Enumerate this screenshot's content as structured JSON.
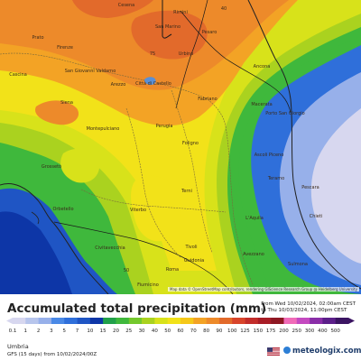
{
  "title": "Accumulated total precipitation (mm)",
  "dates": {
    "from": "From Wed 10/02/2024, 02:00am CEST",
    "to": "to Thu 10/03/2024, 11:00pm CEST"
  },
  "region": "Umbria",
  "model": "GFS (15 days) from 10/02/2024/00Z",
  "brand": "meteologix.com",
  "attribution": "Map data © OpenStreetMap contributors, rendering GIScience Research Group @ Heidelberg University",
  "legend": {
    "values": [
      "0.1",
      "1",
      "2",
      "3",
      "5",
      "7",
      "10",
      "15",
      "20",
      "25",
      "30",
      "40",
      "50",
      "60",
      "70",
      "80",
      "90",
      "100",
      "125",
      "150",
      "175",
      "200",
      "250",
      "300",
      "400",
      "500"
    ],
    "colors": [
      "#d7d7ef",
      "#b7c5ec",
      "#97b0ea",
      "#4a89e6",
      "#2f6fda",
      "#1f55c4",
      "#0d36a7",
      "#21a04a",
      "#3fb83c",
      "#74c82d",
      "#aad21f",
      "#d8e21a",
      "#f2e219",
      "#f5c819",
      "#f3a325",
      "#ed8a2a",
      "#e26a2b",
      "#d8452b",
      "#c22d2a",
      "#a81d26",
      "#8e1722",
      "#f06bb8",
      "#c44ac0",
      "#8a2ea8",
      "#5c1f8a",
      "#3b1462"
    ]
  },
  "cities": [
    {
      "name": "Cesena"
    },
    {
      "name": "Rimini"
    },
    {
      "name": "Prato"
    },
    {
      "name": "Firenze"
    },
    {
      "name": "San Marino"
    },
    {
      "name": "Pesaro"
    },
    {
      "name": "Urbino"
    },
    {
      "name": "Ancona"
    },
    {
      "name": "Cascina"
    },
    {
      "name": "San Giovanni Valdarno"
    },
    {
      "name": "Arezzo"
    },
    {
      "name": "Città di Castello"
    },
    {
      "name": "Fabriano"
    },
    {
      "name": "Macerata"
    },
    {
      "name": "Porto San Giorgio"
    },
    {
      "name": "Siena"
    },
    {
      "name": "Montepulciano"
    },
    {
      "name": "Perugia"
    },
    {
      "name": "Foligno"
    },
    {
      "name": "Ascoli Piceno"
    },
    {
      "name": "Grosseto"
    },
    {
      "name": "Teramo"
    },
    {
      "name": "Terni"
    },
    {
      "name": "Pescara"
    },
    {
      "name": "Orbetello"
    },
    {
      "name": "Viterbo"
    },
    {
      "name": "L'Aquila"
    },
    {
      "name": "Chieti"
    },
    {
      "name": "Civitavecchia"
    },
    {
      "name": "Tivoli"
    },
    {
      "name": "Avezzano"
    },
    {
      "name": "Roma"
    },
    {
      "name": "Guidonia"
    },
    {
      "name": "Sulmona"
    },
    {
      "name": "Fiumicino"
    }
  ],
  "map_labels": [
    "75",
    "50",
    "40"
  ]
}
